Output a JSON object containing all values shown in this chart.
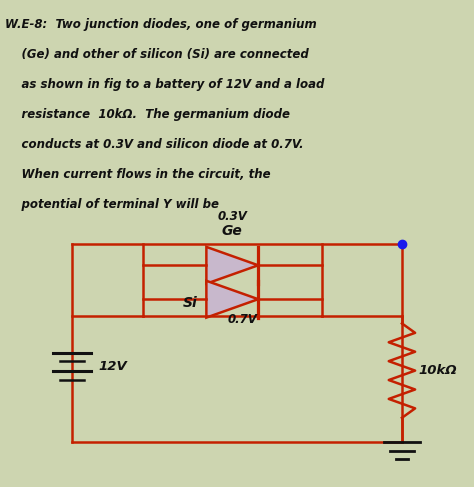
{
  "background_color": "#cdd5b0",
  "circuit_color": "#c42000",
  "diode_fill": "#c8b8cc",
  "node_color": "#1a1aee",
  "text_color": "#111111",
  "title_lines": [
    "W.E-8:  Two junction diodes, one of germanium",
    "    (Ge) and other of silicon (Si) are connected",
    "    as shown in fig to a battery of 12V and a load",
    "    resistance  10kΩ.  The germanium diode",
    "    conducts at 0.3V and silicon diode at 0.7V.",
    "    When current flows in the circuit, the",
    "    potential of terminal Y will be"
  ],
  "ge_label": "Ge",
  "si_label": "Si",
  "ge_voltage": "0.3V",
  "si_voltage": "0.7V",
  "battery_label": "12V",
  "resistor_label": "10kΩ",
  "lw": 1.8,
  "diode_size": 0.55
}
